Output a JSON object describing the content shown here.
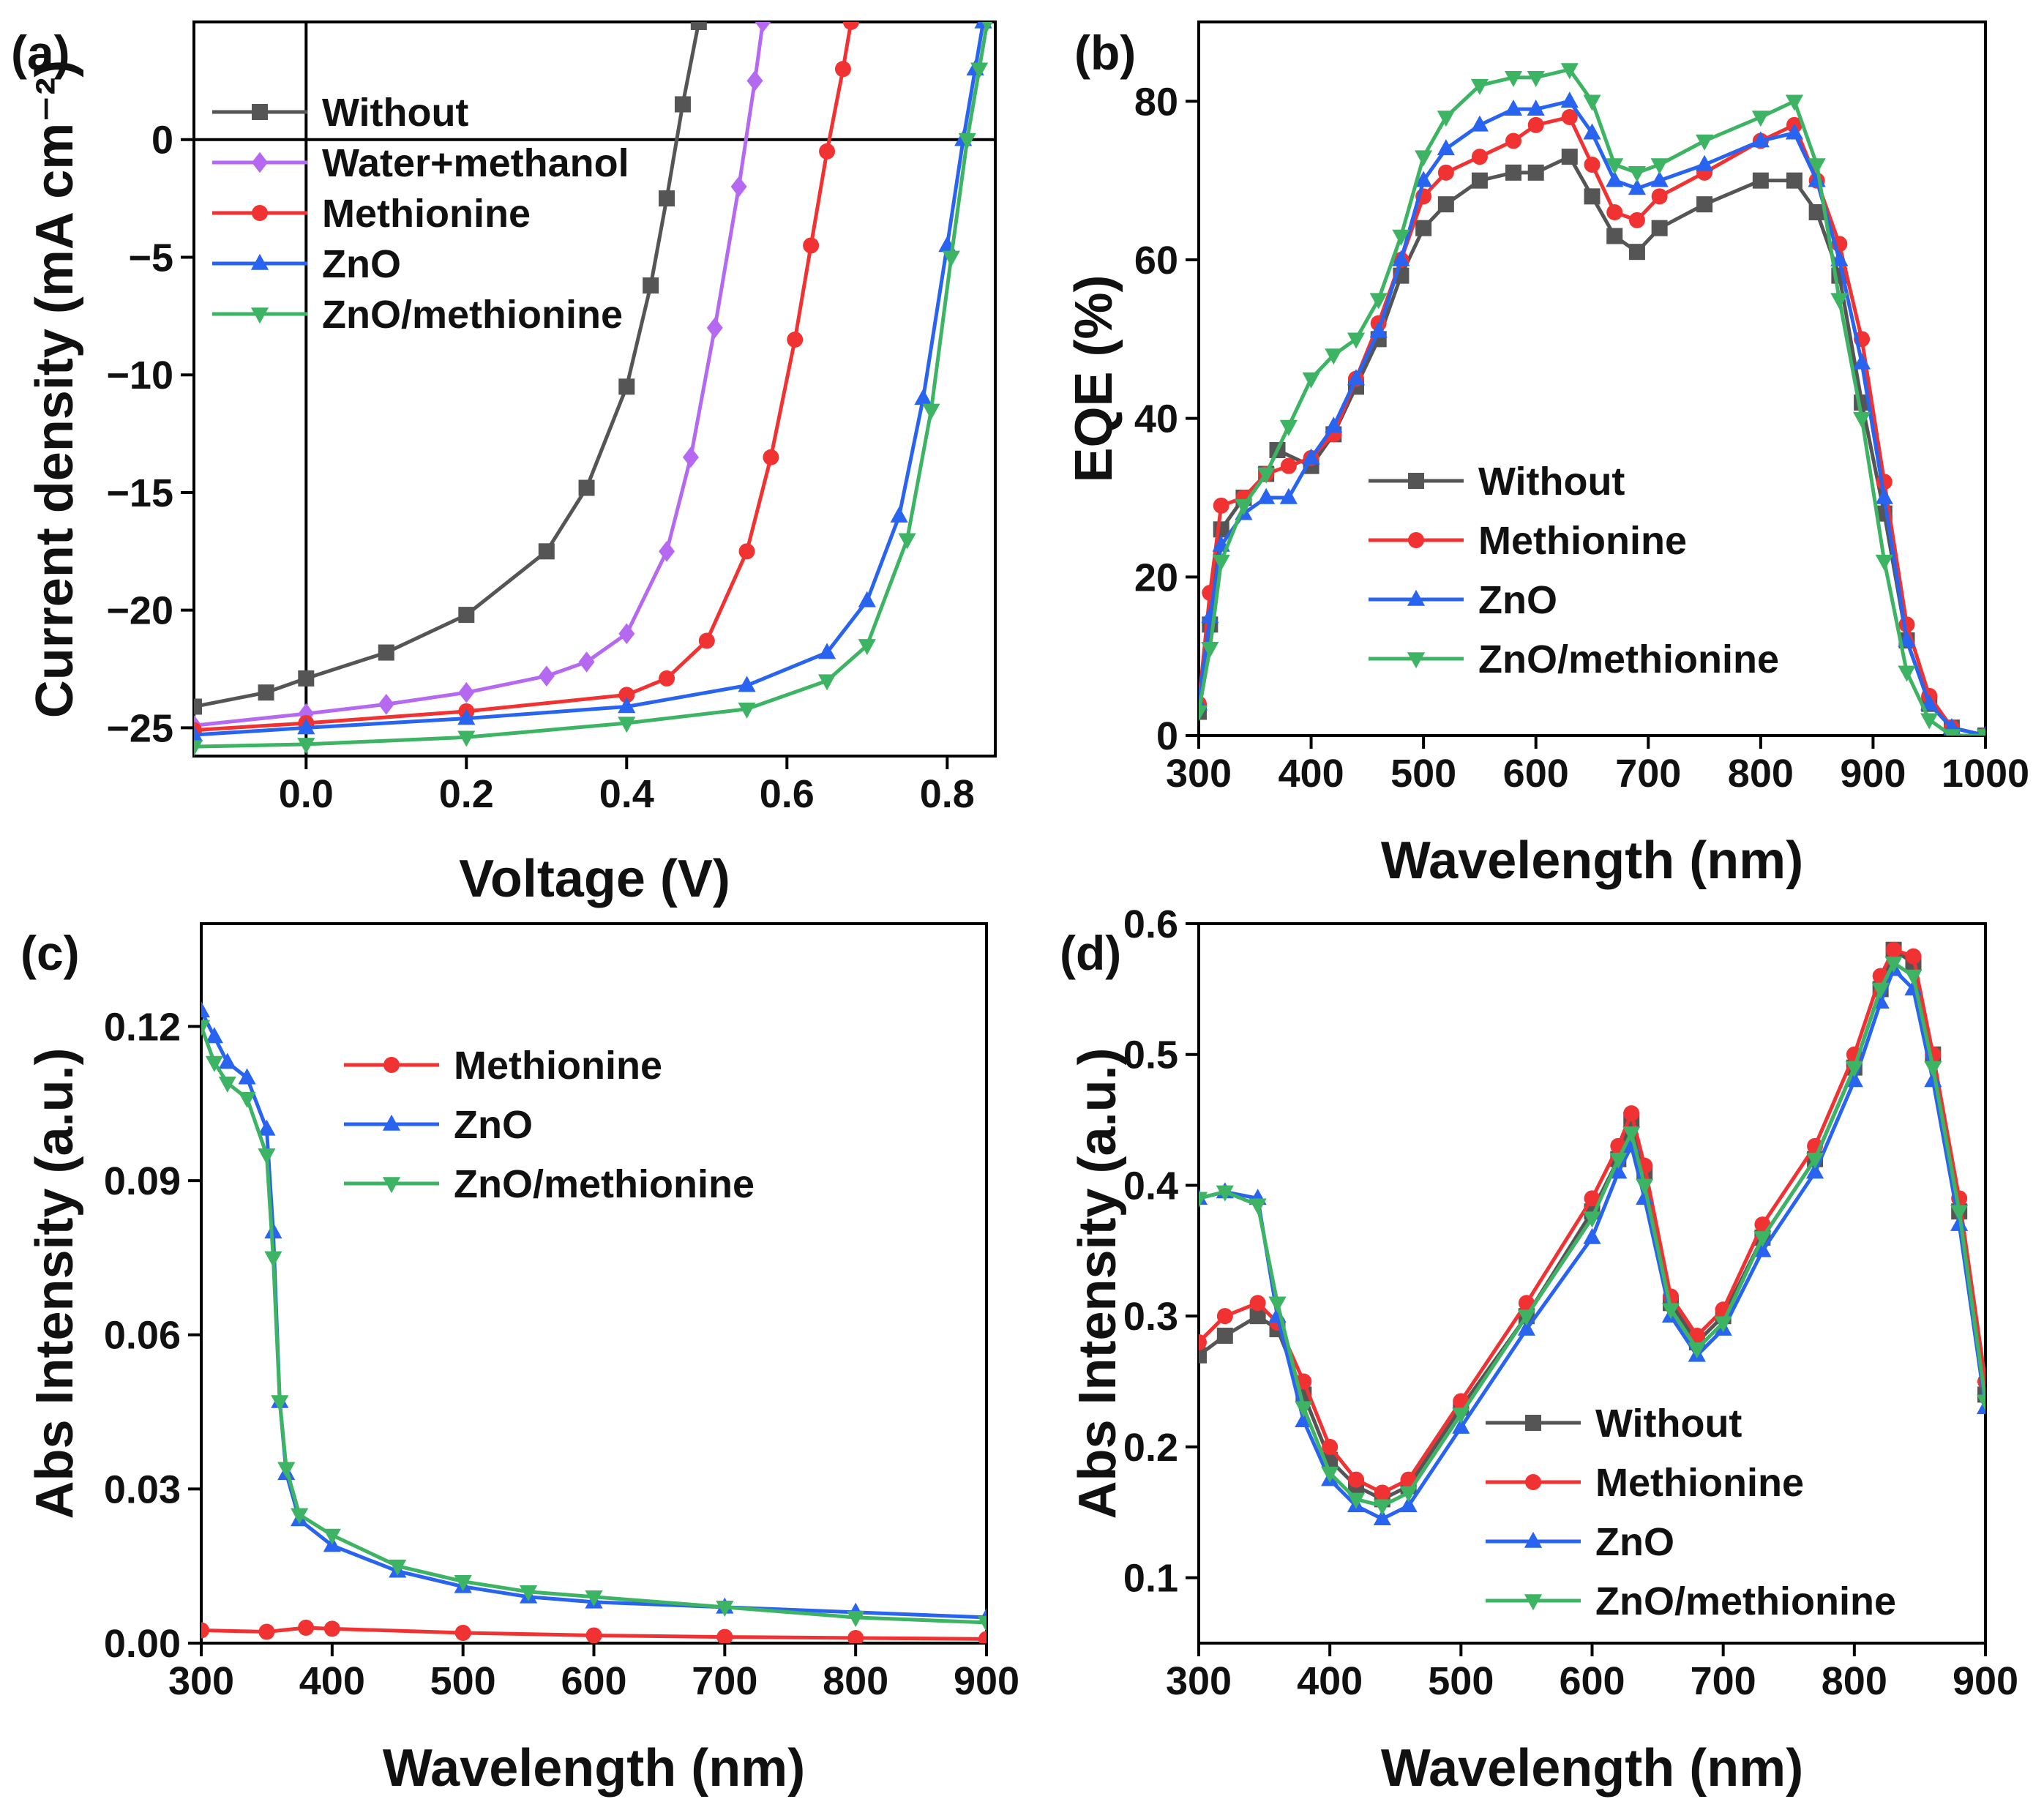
{
  "figure": {
    "background": "#ffffff"
  },
  "colors": {
    "Without": "#555555",
    "Water+methanol": "#b469f0",
    "Methionine": "#f03232",
    "ZnO": "#2864f0",
    "ZnO/methionine": "#3cb464"
  },
  "markers": {
    "Without": "square",
    "Water+methanol": "diamond",
    "Methionine": "circle",
    "ZnO": "triangle-up",
    "ZnO/methionine": "triangle-down"
  },
  "chart_data": [
    {
      "panel": "(a)",
      "type": "line",
      "title": "",
      "xlabel": "Voltage (V)",
      "ylabel": "Current density (mA cm⁻²)",
      "xlim": [
        -0.14,
        0.86
      ],
      "ylim": [
        -26.2,
        5
      ],
      "xticks": [
        0.0,
        0.2,
        0.4,
        0.6,
        0.8
      ],
      "xtick_labels": [
        "0.0",
        "0.2",
        "0.4",
        "0.6",
        "0.8"
      ],
      "yticks": [
        0,
        -5,
        -10,
        -15,
        -20,
        -25
      ],
      "ytick_labels": [
        "0",
        "−5",
        "−10",
        "−15",
        "−20",
        "−25"
      ],
      "zero_lines": true,
      "legend": "top-left",
      "series": [
        {
          "name": "Without",
          "x": [
            -0.14,
            -0.05,
            0.0,
            0.1,
            0.2,
            0.3,
            0.35,
            0.4,
            0.43,
            0.45,
            0.47,
            0.49
          ],
          "y": [
            -24.1,
            -23.5,
            -22.9,
            -21.8,
            -20.2,
            -17.5,
            -14.8,
            -10.5,
            -6.2,
            -2.5,
            1.5,
            5.0
          ]
        },
        {
          "name": "Water+methanol",
          "x": [
            -0.14,
            0.0,
            0.1,
            0.2,
            0.3,
            0.35,
            0.4,
            0.45,
            0.48,
            0.51,
            0.54,
            0.56,
            0.57
          ],
          "y": [
            -24.9,
            -24.4,
            -24.0,
            -23.5,
            -22.8,
            -22.2,
            -21.0,
            -17.5,
            -13.5,
            -8.0,
            -2.0,
            2.5,
            5.0
          ]
        },
        {
          "name": "Methionine",
          "x": [
            -0.14,
            0.0,
            0.2,
            0.4,
            0.45,
            0.5,
            0.55,
            0.58,
            0.61,
            0.63,
            0.65,
            0.67,
            0.68
          ],
          "y": [
            -25.1,
            -24.8,
            -24.3,
            -23.6,
            -22.9,
            -21.3,
            -17.5,
            -13.5,
            -8.5,
            -4.5,
            -0.5,
            3.0,
            5.0
          ]
        },
        {
          "name": "ZnO",
          "x": [
            -0.14,
            0.0,
            0.2,
            0.4,
            0.55,
            0.65,
            0.7,
            0.74,
            0.77,
            0.8,
            0.82,
            0.835,
            0.845
          ],
          "y": [
            -25.3,
            -25.0,
            -24.6,
            -24.1,
            -23.2,
            -21.8,
            -19.6,
            -16.0,
            -11.0,
            -4.5,
            0.0,
            3.0,
            5.0
          ]
        },
        {
          "name": "ZnO/methionine",
          "x": [
            -0.14,
            0.0,
            0.2,
            0.4,
            0.55,
            0.65,
            0.7,
            0.75,
            0.78,
            0.805,
            0.825,
            0.84,
            0.85
          ],
          "y": [
            -25.8,
            -25.7,
            -25.4,
            -24.8,
            -24.2,
            -23.0,
            -21.5,
            -17.0,
            -11.5,
            -5.0,
            0.0,
            3.0,
            5.0
          ]
        }
      ]
    },
    {
      "panel": "(b)",
      "type": "line",
      "title": "",
      "xlabel": "Wavelength (nm)",
      "ylabel": "EQE (%)",
      "xlim": [
        300,
        1000
      ],
      "ylim": [
        0,
        90
      ],
      "xticks": [
        300,
        400,
        500,
        600,
        700,
        800,
        900,
        1000
      ],
      "xtick_labels": [
        "300",
        "400",
        "500",
        "600",
        "700",
        "800",
        "900",
        "1000"
      ],
      "yticks": [
        0,
        20,
        40,
        60,
        80
      ],
      "ytick_labels": [
        "0",
        "20",
        "40",
        "60",
        "80"
      ],
      "legend": "center-left",
      "series": [
        {
          "name": "Without",
          "x": [
            300,
            310,
            320,
            340,
            360,
            370,
            400,
            420,
            440,
            460,
            480,
            500,
            520,
            550,
            580,
            600,
            630,
            650,
            670,
            690,
            710,
            750,
            800,
            830,
            850,
            870,
            890,
            910,
            930,
            950,
            970,
            1000
          ],
          "y": [
            3,
            14,
            26,
            30,
            33,
            36,
            34,
            38,
            44,
            50,
            58,
            64,
            67,
            70,
            71,
            71,
            73,
            68,
            63,
            61,
            64,
            67,
            70,
            70,
            66,
            58,
            42,
            28,
            12,
            4,
            1,
            0
          ]
        },
        {
          "name": "Methionine",
          "x": [
            300,
            310,
            320,
            340,
            360,
            380,
            400,
            420,
            440,
            460,
            480,
            500,
            520,
            550,
            580,
            600,
            630,
            650,
            670,
            690,
            710,
            750,
            800,
            830,
            850,
            870,
            890,
            910,
            930,
            950,
            970,
            1000
          ],
          "y": [
            4,
            18,
            29,
            30,
            33,
            34,
            35,
            38,
            45,
            52,
            60,
            68,
            71,
            73,
            75,
            77,
            78,
            72,
            66,
            65,
            68,
            71,
            75,
            77,
            70,
            62,
            50,
            32,
            14,
            5,
            1,
            0
          ]
        },
        {
          "name": "ZnO",
          "x": [
            300,
            310,
            320,
            340,
            360,
            380,
            400,
            420,
            440,
            460,
            480,
            500,
            520,
            550,
            580,
            600,
            630,
            650,
            670,
            690,
            710,
            750,
            800,
            830,
            850,
            870,
            890,
            910,
            930,
            950,
            970,
            1000
          ],
          "y": [
            4,
            15,
            24,
            28,
            30,
            30,
            35,
            39,
            45,
            51,
            60,
            70,
            74,
            77,
            79,
            79,
            80,
            76,
            70,
            69,
            70,
            72,
            75,
            76,
            70,
            60,
            47,
            30,
            12,
            4,
            1,
            0
          ]
        },
        {
          "name": "ZnO/methionine",
          "x": [
            300,
            310,
            320,
            340,
            360,
            380,
            400,
            420,
            440,
            460,
            480,
            500,
            520,
            550,
            580,
            600,
            630,
            650,
            670,
            690,
            710,
            750,
            800,
            830,
            850,
            870,
            890,
            910,
            930,
            950,
            970,
            1000
          ],
          "y": [
            3,
            11,
            22,
            29,
            33,
            39,
            45,
            48,
            50,
            55,
            63,
            73,
            78,
            82,
            83,
            83,
            84,
            80,
            72,
            71,
            72,
            75,
            78,
            80,
            72,
            55,
            40,
            22,
            8,
            2,
            0,
            0
          ]
        }
      ]
    },
    {
      "panel": "(c)",
      "type": "line",
      "title": "",
      "xlabel": "Wavelength (nm)",
      "ylabel": "Abs Intensity (a.u.)",
      "xlim": [
        300,
        900
      ],
      "ylim": [
        0,
        0.14
      ],
      "xticks": [
        300,
        400,
        500,
        600,
        700,
        800,
        900
      ],
      "xtick_labels": [
        "300",
        "400",
        "500",
        "600",
        "700",
        "800",
        "900"
      ],
      "yticks": [
        0.0,
        0.03,
        0.06,
        0.09,
        0.12
      ],
      "ytick_labels": [
        "0.00",
        "0.03",
        "0.06",
        "0.09",
        "0.12"
      ],
      "legend": "top-center",
      "series": [
        {
          "name": "Methionine",
          "x": [
            300,
            350,
            380,
            400,
            500,
            600,
            700,
            800,
            900
          ],
          "y": [
            0.0025,
            0.0022,
            0.003,
            0.0028,
            0.002,
            0.0015,
            0.0012,
            0.001,
            0.0008
          ]
        },
        {
          "name": "ZnO",
          "x": [
            300,
            310,
            320,
            335,
            350,
            355,
            360,
            365,
            375,
            400,
            450,
            500,
            550,
            600,
            700,
            800,
            900
          ],
          "y": [
            0.123,
            0.118,
            0.113,
            0.11,
            0.1,
            0.08,
            0.047,
            0.033,
            0.024,
            0.019,
            0.014,
            0.011,
            0.009,
            0.008,
            0.007,
            0.006,
            0.005
          ]
        },
        {
          "name": "ZnO/methionine",
          "x": [
            300,
            310,
            320,
            335,
            350,
            355,
            360,
            365,
            375,
            400,
            450,
            500,
            550,
            600,
            700,
            800,
            900
          ],
          "y": [
            0.12,
            0.113,
            0.109,
            0.106,
            0.095,
            0.075,
            0.047,
            0.034,
            0.025,
            0.021,
            0.015,
            0.012,
            0.01,
            0.009,
            0.007,
            0.005,
            0.004
          ]
        }
      ]
    },
    {
      "panel": "(d)",
      "type": "line",
      "title": "",
      "xlabel": "Wavelength (nm)",
      "ylabel": "Abs Intensity (a.u.)",
      "xlim": [
        300,
        900
      ],
      "ylim": [
        0.05,
        0.6
      ],
      "xticks": [
        300,
        400,
        500,
        600,
        700,
        800,
        900
      ],
      "xtick_labels": [
        "300",
        "400",
        "500",
        "600",
        "700",
        "800",
        "900"
      ],
      "yticks": [
        0.1,
        0.2,
        0.3,
        0.4,
        0.5,
        0.6
      ],
      "ytick_labels": [
        "0.1",
        "0.2",
        "0.3",
        "0.4",
        "0.5",
        "0.6"
      ],
      "legend": "bottom-right",
      "series": [
        {
          "name": "Without",
          "x": [
            300,
            320,
            345,
            360,
            380,
            400,
            420,
            440,
            460,
            500,
            550,
            600,
            620,
            630,
            640,
            660,
            680,
            700,
            730,
            770,
            800,
            820,
            830,
            845,
            860,
            880,
            900
          ],
          "y": [
            0.27,
            0.285,
            0.3,
            0.29,
            0.24,
            0.19,
            0.17,
            0.16,
            0.17,
            0.23,
            0.3,
            0.38,
            0.42,
            0.45,
            0.41,
            0.31,
            0.28,
            0.3,
            0.36,
            0.42,
            0.49,
            0.55,
            0.58,
            0.57,
            0.5,
            0.38,
            0.24
          ]
        },
        {
          "name": "Methionine",
          "x": [
            300,
            320,
            345,
            360,
            380,
            400,
            420,
            440,
            460,
            500,
            550,
            600,
            620,
            630,
            640,
            660,
            680,
            700,
            730,
            770,
            800,
            820,
            830,
            845,
            860,
            880,
            900
          ],
          "y": [
            0.28,
            0.3,
            0.31,
            0.295,
            0.25,
            0.2,
            0.175,
            0.165,
            0.175,
            0.235,
            0.31,
            0.39,
            0.43,
            0.455,
            0.415,
            0.315,
            0.285,
            0.305,
            0.37,
            0.43,
            0.5,
            0.56,
            0.58,
            0.575,
            0.5,
            0.39,
            0.25
          ]
        },
        {
          "name": "ZnO",
          "x": [
            300,
            320,
            345,
            360,
            380,
            400,
            420,
            440,
            460,
            500,
            550,
            600,
            620,
            630,
            640,
            660,
            680,
            700,
            730,
            770,
            800,
            820,
            830,
            845,
            860,
            880,
            900
          ],
          "y": [
            0.39,
            0.395,
            0.39,
            0.3,
            0.22,
            0.175,
            0.155,
            0.145,
            0.155,
            0.215,
            0.29,
            0.36,
            0.41,
            0.43,
            0.39,
            0.3,
            0.27,
            0.29,
            0.35,
            0.41,
            0.48,
            0.54,
            0.565,
            0.55,
            0.48,
            0.37,
            0.23
          ]
        },
        {
          "name": "ZnO/methionine",
          "x": [
            300,
            320,
            345,
            360,
            380,
            400,
            420,
            440,
            460,
            500,
            550,
            600,
            620,
            630,
            640,
            660,
            680,
            700,
            730,
            770,
            800,
            820,
            830,
            845,
            860,
            880,
            900
          ],
          "y": [
            0.39,
            0.395,
            0.385,
            0.31,
            0.23,
            0.18,
            0.16,
            0.155,
            0.165,
            0.225,
            0.3,
            0.375,
            0.42,
            0.44,
            0.4,
            0.305,
            0.275,
            0.295,
            0.36,
            0.42,
            0.49,
            0.55,
            0.57,
            0.56,
            0.49,
            0.38,
            0.235
          ]
        }
      ]
    }
  ]
}
